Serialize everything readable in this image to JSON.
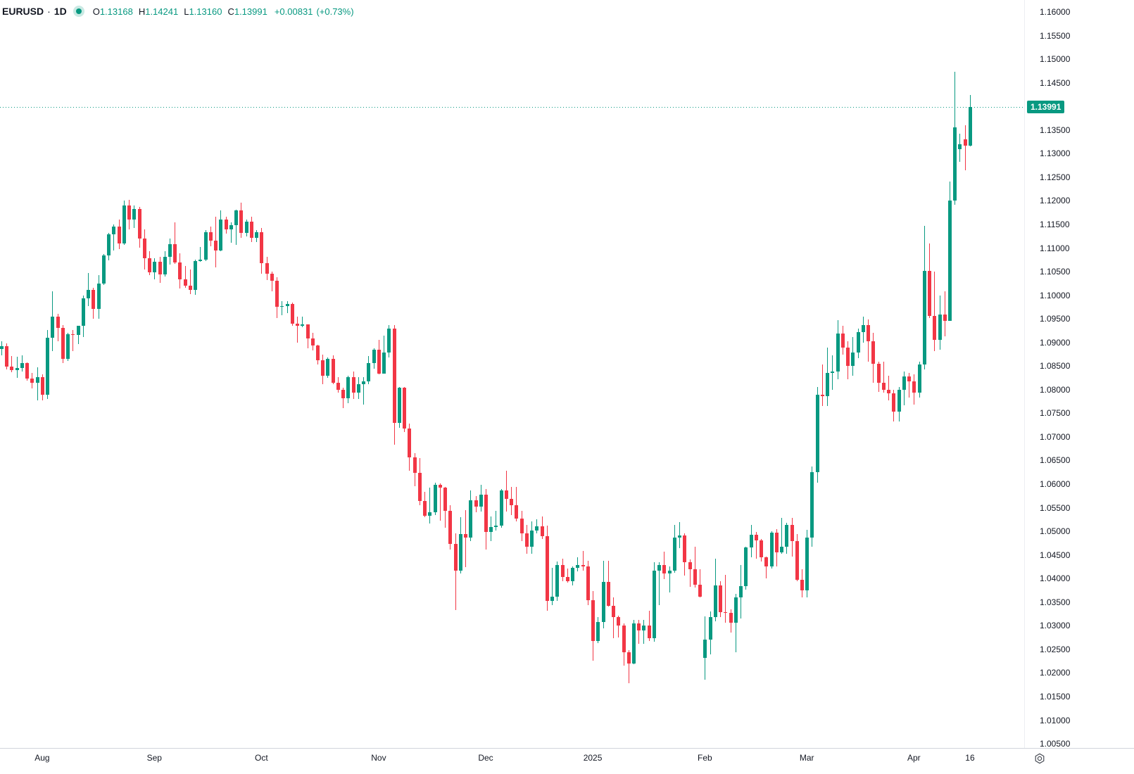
{
  "header": {
    "symbol": "EURUSD",
    "separator": "·",
    "interval": "1D",
    "ohlc": {
      "o_label": "O",
      "o": "1.13168",
      "h_label": "H",
      "h": "1.14241",
      "l_label": "L",
      "l": "1.13160",
      "c_label": "C",
      "c": "1.13991",
      "change": "+0.00831",
      "change_pct": "(+0.73%)"
    },
    "status_color": "#089981"
  },
  "price_scale": {
    "last_price_label": "1.13991",
    "badge_color": "#089981",
    "ticks": [
      "1.16000",
      "1.15500",
      "1.15000",
      "1.14500",
      "1.13500",
      "1.13000",
      "1.12500",
      "1.12000",
      "1.11500",
      "1.11000",
      "1.10500",
      "1.10000",
      "1.09500",
      "1.09000",
      "1.08500",
      "1.08000",
      "1.07500",
      "1.07000",
      "1.06500",
      "1.06000",
      "1.05500",
      "1.05000",
      "1.04500",
      "1.04000",
      "1.03500",
      "1.03000",
      "1.02500",
      "1.02000",
      "1.01500",
      "1.01000",
      "1.00500"
    ]
  },
  "chart_data": {
    "type": "candlestick",
    "title": "EURUSD · 1D",
    "symbol": "EURUSD",
    "timeframe": "1D",
    "up_color": "#089981",
    "down_color": "#F23645",
    "last_price": 1.13991,
    "y_axis": {
      "min": 1.005,
      "max": 1.16,
      "tick_step": 0.005,
      "grid": false
    },
    "x_axis": {
      "labels": [
        {
          "text": "Aug",
          "index": 8
        },
        {
          "text": "Sep",
          "index": 30
        },
        {
          "text": "Oct",
          "index": 51
        },
        {
          "text": "Nov",
          "index": 74
        },
        {
          "text": "Dec",
          "index": 95
        },
        {
          "text": "2025",
          "index": 116
        },
        {
          "text": "Feb",
          "index": 138
        },
        {
          "text": "Mar",
          "index": 158
        },
        {
          "text": "Apr",
          "index": 179
        },
        {
          "text": "16",
          "index": 190
        }
      ]
    },
    "candles_format": [
      "open",
      "high",
      "low",
      "close"
    ],
    "candles": [
      [
        1.0886,
        1.0903,
        1.0872,
        1.0892
      ],
      [
        1.0892,
        1.0898,
        1.0843,
        1.0849
      ],
      [
        1.0849,
        1.0871,
        1.0837,
        1.0841
      ],
      [
        1.0841,
        1.087,
        1.0825,
        1.0846
      ],
      [
        1.0846,
        1.0872,
        1.0838,
        1.0856
      ],
      [
        1.0856,
        1.0858,
        1.0819,
        1.0823
      ],
      [
        1.0823,
        1.0836,
        1.0802,
        1.0815
      ],
      [
        1.0815,
        1.0848,
        1.0777,
        1.0826
      ],
      [
        1.0826,
        1.0833,
        1.0777,
        1.0789
      ],
      [
        1.0789,
        1.0927,
        1.078,
        1.091
      ],
      [
        1.091,
        1.1009,
        1.0882,
        1.0954
      ],
      [
        1.0954,
        1.096,
        1.0903,
        1.0931
      ],
      [
        1.0931,
        1.0937,
        1.0857,
        1.0865
      ],
      [
        1.0865,
        1.0921,
        1.0861,
        1.0917
      ],
      [
        1.0917,
        1.0927,
        1.0881,
        1.0916
      ],
      [
        1.0916,
        1.0936,
        1.0896,
        1.0935
      ],
      [
        1.0935,
        1.1,
        1.0912,
        1.0993
      ],
      [
        1.0993,
        1.1047,
        1.0977,
        1.1012
      ],
      [
        1.1012,
        1.1016,
        1.095,
        1.0971
      ],
      [
        1.0971,
        1.1043,
        1.095,
        1.1024
      ],
      [
        1.1024,
        1.1087,
        1.1022,
        1.1085
      ],
      [
        1.1085,
        1.1132,
        1.1074,
        1.1129
      ],
      [
        1.1129,
        1.115,
        1.1095,
        1.1146
      ],
      [
        1.1146,
        1.1161,
        1.1098,
        1.111
      ],
      [
        1.111,
        1.12,
        1.1106,
        1.119
      ],
      [
        1.119,
        1.1202,
        1.1139,
        1.116
      ],
      [
        1.116,
        1.119,
        1.1142,
        1.1183
      ],
      [
        1.1183,
        1.1187,
        1.11,
        1.112
      ],
      [
        1.112,
        1.1139,
        1.1055,
        1.1078
      ],
      [
        1.1078,
        1.1094,
        1.1042,
        1.1048
      ],
      [
        1.1048,
        1.1078,
        1.1034,
        1.1071
      ],
      [
        1.1071,
        1.1082,
        1.1026,
        1.1044
      ],
      [
        1.1044,
        1.1093,
        1.104,
        1.1082
      ],
      [
        1.1082,
        1.112,
        1.1065,
        1.1108
      ],
      [
        1.1108,
        1.1155,
        1.1066,
        1.1069
      ],
      [
        1.1069,
        1.1089,
        1.1015,
        1.1034
      ],
      [
        1.1034,
        1.1062,
        1.1016,
        1.102
      ],
      [
        1.102,
        1.1055,
        1.1002,
        1.1012
      ],
      [
        1.1012,
        1.1075,
        1.1001,
        1.1073
      ],
      [
        1.1073,
        1.1102,
        1.1071,
        1.1076
      ],
      [
        1.1076,
        1.1138,
        1.1072,
        1.1133
      ],
      [
        1.1133,
        1.1146,
        1.1104,
        1.1115
      ],
      [
        1.1115,
        1.1166,
        1.1059,
        1.1095
      ],
      [
        1.1095,
        1.1179,
        1.1093,
        1.1161
      ],
      [
        1.1161,
        1.1166,
        1.1131,
        1.114
      ],
      [
        1.114,
        1.1155,
        1.1111,
        1.1148
      ],
      [
        1.1148,
        1.1181,
        1.1107,
        1.118
      ],
      [
        1.118,
        1.1196,
        1.1121,
        1.1132
      ],
      [
        1.1132,
        1.116,
        1.1124,
        1.1156
      ],
      [
        1.1156,
        1.1166,
        1.1113,
        1.1122
      ],
      [
        1.1122,
        1.1138,
        1.1113,
        1.1134
      ],
      [
        1.1134,
        1.1143,
        1.1046,
        1.1068
      ],
      [
        1.1068,
        1.1082,
        1.1032,
        1.1046
      ],
      [
        1.1046,
        1.105,
        1.1008,
        1.1031
      ],
      [
        1.1031,
        1.1038,
        1.0951,
        1.0975
      ],
      [
        1.0975,
        1.0988,
        1.0957,
        1.0977
      ],
      [
        1.0977,
        1.0988,
        1.0962,
        1.0981
      ],
      [
        1.0981,
        1.0984,
        1.0935,
        1.094
      ],
      [
        1.094,
        1.0955,
        1.09,
        1.0936
      ],
      [
        1.0936,
        1.0955,
        1.0932,
        1.0938
      ],
      [
        1.0938,
        1.0939,
        1.0888,
        1.0909
      ],
      [
        1.0909,
        1.0921,
        1.0883,
        1.0894
      ],
      [
        1.0894,
        1.0895,
        1.0853,
        1.0862
      ],
      [
        1.0862,
        1.0874,
        1.0811,
        1.0829
      ],
      [
        1.0829,
        1.0868,
        1.0825,
        1.0866
      ],
      [
        1.0866,
        1.0872,
        1.0811,
        1.0815
      ],
      [
        1.0815,
        1.0827,
        1.0793,
        1.0799
      ],
      [
        1.0799,
        1.0804,
        1.0761,
        1.0782
      ],
      [
        1.0782,
        1.083,
        1.0772,
        1.0827
      ],
      [
        1.0827,
        1.0838,
        1.0781,
        1.0794
      ],
      [
        1.0794,
        1.0826,
        1.078,
        1.0812
      ],
      [
        1.0812,
        1.0827,
        1.0768,
        1.0818
      ],
      [
        1.0818,
        1.0871,
        1.0812,
        1.0857
      ],
      [
        1.0857,
        1.0888,
        1.0844,
        1.0884
      ],
      [
        1.0884,
        1.0905,
        1.0832,
        1.0834
      ],
      [
        1.0834,
        1.0914,
        1.0834,
        1.0878
      ],
      [
        1.0878,
        1.0937,
        1.0869,
        1.093
      ],
      [
        1.093,
        1.0937,
        1.0683,
        1.0729
      ],
      [
        1.0729,
        1.0806,
        1.0719,
        1.0804
      ],
      [
        1.0804,
        1.0806,
        1.0711,
        1.0718
      ],
      [
        1.0718,
        1.0728,
        1.0629,
        1.0657
      ],
      [
        1.0657,
        1.0666,
        1.0595,
        1.0624
      ],
      [
        1.0624,
        1.0655,
        1.0555,
        1.0564
      ],
      [
        1.0564,
        1.0583,
        1.053,
        1.0533
      ],
      [
        1.0533,
        1.0592,
        1.0516,
        1.054
      ],
      [
        1.054,
        1.0603,
        1.0535,
        1.0598
      ],
      [
        1.0598,
        1.0601,
        1.0522,
        1.0592
      ],
      [
        1.0592,
        1.0594,
        1.0507,
        1.0543
      ],
      [
        1.0543,
        1.0555,
        1.0461,
        1.0474
      ],
      [
        1.0474,
        1.0496,
        1.0333,
        1.0417
      ],
      [
        1.0417,
        1.053,
        1.0411,
        1.0494
      ],
      [
        1.0494,
        1.0545,
        1.0424,
        1.0486
      ],
      [
        1.0486,
        1.0587,
        1.048,
        1.0566
      ],
      [
        1.0566,
        1.0575,
        1.054,
        1.0553
      ],
      [
        1.0553,
        1.0598,
        1.0542,
        1.0577
      ],
      [
        1.0577,
        1.0589,
        1.0461,
        1.0498
      ],
      [
        1.0498,
        1.0532,
        1.048,
        1.0509
      ],
      [
        1.0509,
        1.0544,
        1.0501,
        1.0512
      ],
      [
        1.0512,
        1.059,
        1.0508,
        1.0586
      ],
      [
        1.0586,
        1.0629,
        1.0542,
        1.0568
      ],
      [
        1.0568,
        1.0594,
        1.0535,
        1.0555
      ],
      [
        1.0555,
        1.0594,
        1.0521,
        1.0527
      ],
      [
        1.0527,
        1.0544,
        1.048,
        1.0496
      ],
      [
        1.0496,
        1.0514,
        1.0452,
        1.0467
      ],
      [
        1.0467,
        1.0521,
        1.0453,
        1.0501
      ],
      [
        1.0501,
        1.0525,
        1.0495,
        1.0511
      ],
      [
        1.0511,
        1.0531,
        1.0484,
        1.049
      ],
      [
        1.049,
        1.0512,
        1.0332,
        1.0353
      ],
      [
        1.0353,
        1.0422,
        1.0343,
        1.0362
      ],
      [
        1.0362,
        1.0436,
        1.0352,
        1.0428
      ],
      [
        1.0428,
        1.0442,
        1.0395,
        1.0404
      ],
      [
        1.0404,
        1.0421,
        1.0391,
        1.0394
      ],
      [
        1.0394,
        1.0426,
        1.0386,
        1.0422
      ],
      [
        1.0422,
        1.0445,
        1.0415,
        1.0428
      ],
      [
        1.0428,
        1.0458,
        1.0416,
        1.0426
      ],
      [
        1.0426,
        1.0437,
        1.0343,
        1.0354
      ],
      [
        1.0354,
        1.0374,
        1.0226,
        1.0267
      ],
      [
        1.0267,
        1.0319,
        1.0263,
        1.0308
      ],
      [
        1.0308,
        1.0437,
        1.0294,
        1.0393
      ],
      [
        1.0393,
        1.0437,
        1.0341,
        1.0342
      ],
      [
        1.0342,
        1.036,
        1.0273,
        1.0319
      ],
      [
        1.0319,
        1.0321,
        1.0275,
        1.03
      ],
      [
        1.03,
        1.0305,
        1.0215,
        1.0244
      ],
      [
        1.0244,
        1.0249,
        1.0178,
        1.022
      ],
      [
        1.022,
        1.0312,
        1.0218,
        1.0305
      ],
      [
        1.0305,
        1.0312,
        1.0261,
        1.029
      ],
      [
        1.029,
        1.0313,
        1.0262,
        1.0301
      ],
      [
        1.0301,
        1.0332,
        1.0267,
        1.0273
      ],
      [
        1.0273,
        1.0434,
        1.0266,
        1.0417
      ],
      [
        1.0417,
        1.0435,
        1.0343,
        1.0428
      ],
      [
        1.0428,
        1.0457,
        1.0399,
        1.041
      ],
      [
        1.041,
        1.0425,
        1.0371,
        1.0417
      ],
      [
        1.0417,
        1.0513,
        1.0412,
        1.0487
      ],
      [
        1.0487,
        1.052,
        1.0465,
        1.0491
      ],
      [
        1.0491,
        1.0495,
        1.0407,
        1.0434
      ],
      [
        1.0434,
        1.0441,
        1.0382,
        1.042
      ],
      [
        1.042,
        1.0468,
        1.0381,
        1.0387
      ],
      [
        1.0387,
        1.0419,
        1.036,
        1.0362
      ],
      [
        1.0232,
        1.032,
        1.0186,
        1.0271
      ],
      [
        1.0271,
        1.033,
        1.024,
        1.0318
      ],
      [
        1.0318,
        1.0442,
        1.031,
        1.0385
      ],
      [
        1.0385,
        1.0395,
        1.0318,
        1.0329
      ],
      [
        1.0329,
        1.0408,
        1.0306,
        1.0327
      ],
      [
        1.0327,
        1.0335,
        1.0285,
        1.0306
      ],
      [
        1.0306,
        1.0368,
        1.0244,
        1.036
      ],
      [
        1.036,
        1.0429,
        1.0316,
        1.0384
      ],
      [
        1.0384,
        1.0468,
        1.0376,
        1.0466
      ],
      [
        1.0466,
        1.0514,
        1.0445,
        1.0492
      ],
      [
        1.0492,
        1.0498,
        1.0442,
        1.0481
      ],
      [
        1.0481,
        1.0484,
        1.0436,
        1.0445
      ],
      [
        1.0445,
        1.0447,
        1.0401,
        1.0425
      ],
      [
        1.0425,
        1.05,
        1.0421,
        1.0497
      ],
      [
        1.0497,
        1.0504,
        1.0425,
        1.0456
      ],
      [
        1.0456,
        1.0528,
        1.0452,
        1.0468
      ],
      [
        1.0468,
        1.0518,
        1.0453,
        1.0514
      ],
      [
        1.0514,
        1.0529,
        1.0446,
        1.048
      ],
      [
        1.048,
        1.0494,
        1.0395,
        1.0398
      ],
      [
        1.0398,
        1.042,
        1.036,
        1.0375
      ],
      [
        1.0375,
        1.0503,
        1.036,
        1.0486
      ],
      [
        1.0486,
        1.0637,
        1.0467,
        1.0625
      ],
      [
        1.0625,
        1.0806,
        1.0603,
        1.079
      ],
      [
        1.079,
        1.0854,
        1.0765,
        1.0786
      ],
      [
        1.0786,
        1.0889,
        1.0765,
        1.0835
      ],
      [
        1.0835,
        1.0873,
        1.08,
        1.0838
      ],
      [
        1.0838,
        1.0947,
        1.0822,
        1.0919
      ],
      [
        1.0919,
        1.0936,
        1.0874,
        1.0889
      ],
      [
        1.0889,
        1.0903,
        1.0822,
        1.0851
      ],
      [
        1.0851,
        1.0912,
        1.083,
        1.0878
      ],
      [
        1.0878,
        1.093,
        1.0867,
        1.0922
      ],
      [
        1.0922,
        1.0954,
        1.0899,
        1.0937
      ],
      [
        1.0937,
        1.0948,
        1.086,
        1.0903
      ],
      [
        1.0903,
        1.092,
        1.0815,
        1.0855
      ],
      [
        1.0855,
        1.086,
        1.0795,
        1.0815
      ],
      [
        1.0815,
        1.086,
        1.0794,
        1.08
      ],
      [
        1.08,
        1.0829,
        1.0777,
        1.0792
      ],
      [
        1.0792,
        1.0799,
        1.0733,
        1.0754
      ],
      [
        1.0754,
        1.0805,
        1.0732,
        1.08
      ],
      [
        1.08,
        1.0838,
        1.0767,
        1.0828
      ],
      [
        1.0828,
        1.0835,
        1.0783,
        1.0818
      ],
      [
        1.0818,
        1.0832,
        1.0769,
        1.0793
      ],
      [
        1.0793,
        1.086,
        1.0783,
        1.0853
      ],
      [
        1.0853,
        1.1147,
        1.0843,
        1.1052
      ],
      [
        1.1052,
        1.1109,
        1.0952,
        1.0956
      ],
      [
        1.0956,
        1.105,
        1.0882,
        1.0905
      ],
      [
        1.0905,
        1.0999,
        1.0885,
        1.0959
      ],
      [
        1.0959,
        1.1009,
        1.0913,
        1.0946
      ],
      [
        1.0946,
        1.1241,
        1.0946,
        1.1201
      ],
      [
        1.1201,
        1.1473,
        1.1192,
        1.1355
      ],
      [
        1.1309,
        1.1342,
        1.1283,
        1.132
      ],
      [
        1.133,
        1.136,
        1.1264,
        1.1317
      ],
      [
        1.13168,
        1.14241,
        1.1316,
        1.13991
      ]
    ]
  }
}
